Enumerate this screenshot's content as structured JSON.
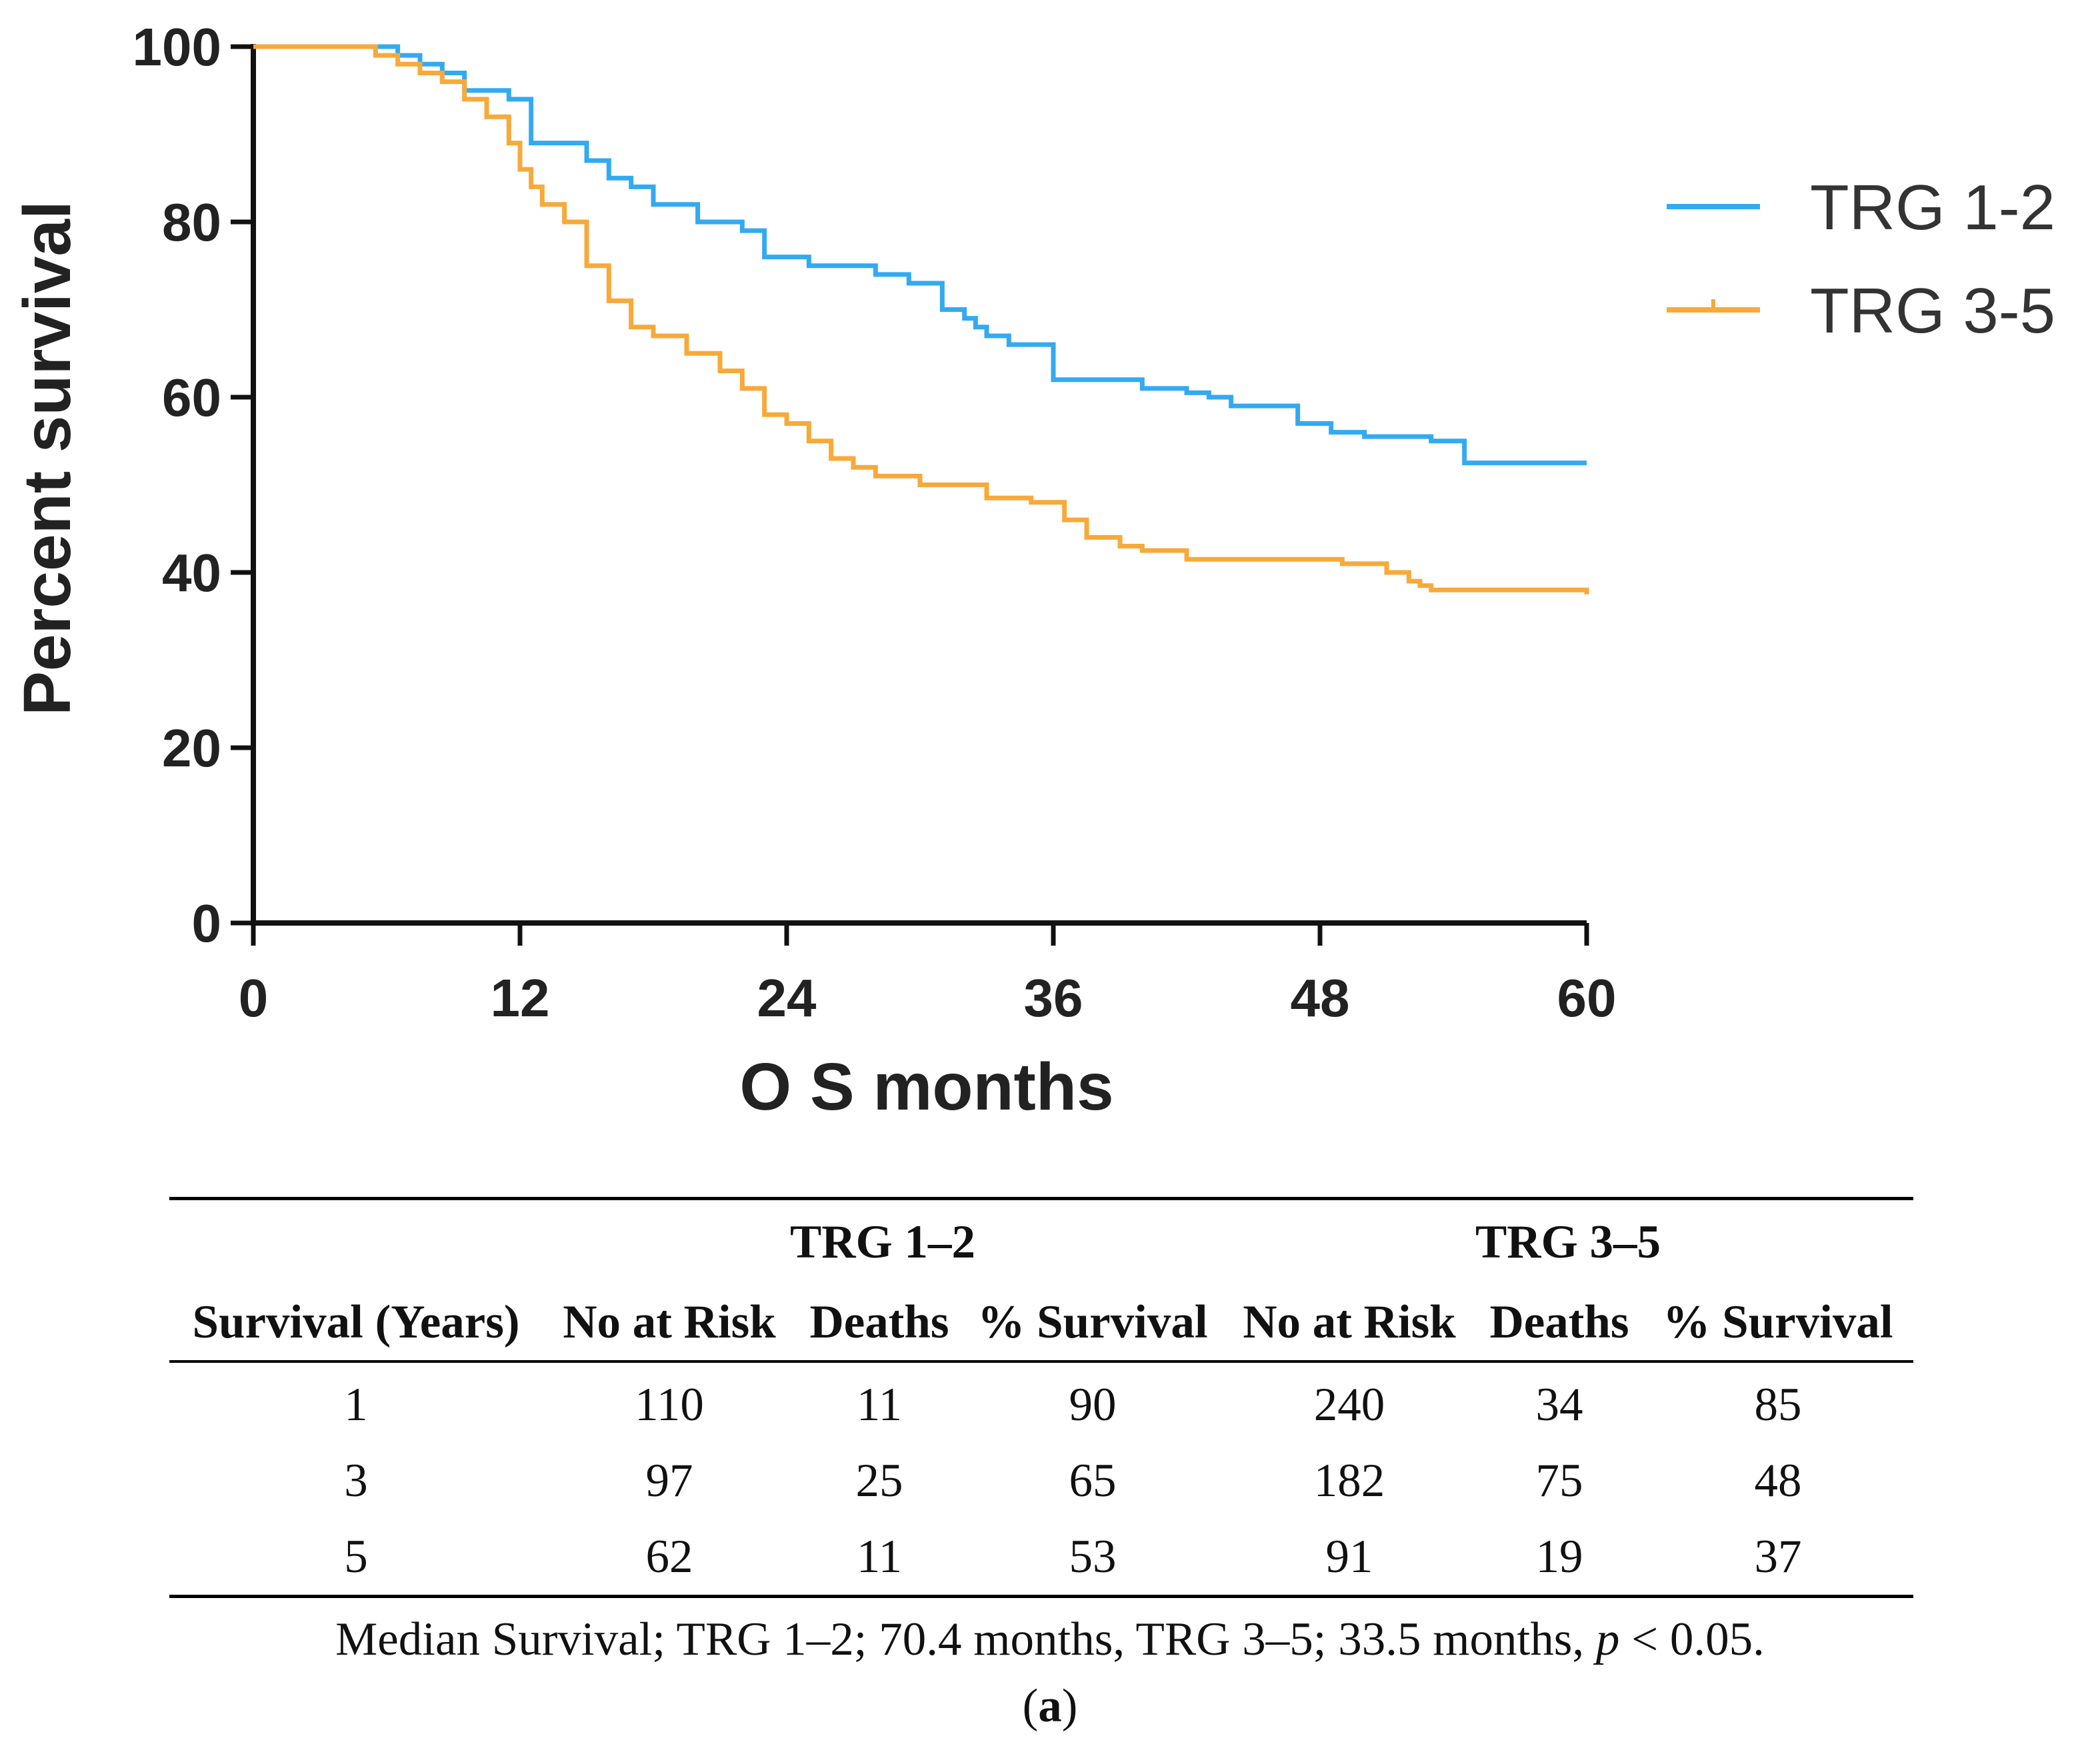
{
  "chart_data": {
    "type": "line",
    "subtype": "kaplan-meier",
    "xlabel": "O S months",
    "ylabel": "Percent survival",
    "xlim": [
      0,
      60
    ],
    "ylim": [
      0,
      100
    ],
    "xticks": [
      "0",
      "12",
      "24",
      "36",
      "48",
      "60"
    ],
    "yticks": [
      "0",
      "20",
      "40",
      "60",
      "80",
      "100"
    ],
    "legend_position": "right",
    "series": [
      {
        "name": "TRG 1-2",
        "color": "#33aaf0",
        "x": [
          0,
          5.5,
          6.5,
          7.5,
          8.5,
          9.5,
          11.5,
          12.5,
          15,
          16,
          17,
          18,
          20,
          22,
          23,
          25,
          28,
          29.5,
          31,
          32,
          32.5,
          33,
          34,
          36,
          40,
          42,
          43,
          44,
          45,
          47,
          48.5,
          50,
          53,
          54.5,
          60
        ],
        "y": [
          100,
          100,
          99,
          98,
          97,
          95,
          94,
          89,
          87,
          85,
          84,
          82,
          80,
          79,
          76,
          75,
          74,
          73,
          70,
          69,
          68,
          67,
          66,
          62,
          61,
          60.5,
          60,
          59,
          59,
          57,
          56,
          55.5,
          55,
          52.5,
          52.5
        ]
      },
      {
        "name": "TRG 3-5",
        "color": "#f7a93a",
        "x": [
          0,
          5.5,
          6.5,
          7.5,
          8.5,
          9.5,
          10.5,
          11.5,
          12,
          12.5,
          13,
          14,
          15,
          16,
          17,
          18,
          19.5,
          21,
          22,
          23,
          24,
          25,
          26,
          27,
          28,
          30,
          32,
          33,
          35,
          36.5,
          37.5,
          39,
          40,
          42,
          47,
          49,
          51,
          52,
          52.5,
          53,
          60
        ],
        "y": [
          100,
          99,
          98,
          97,
          96,
          94,
          92,
          89,
          86,
          84,
          82,
          80,
          75,
          71,
          68,
          67,
          65,
          63,
          61,
          58,
          57,
          55,
          53,
          52,
          51,
          50,
          50,
          48.5,
          48,
          46,
          44,
          43,
          42.5,
          41.5,
          41.5,
          41,
          40,
          39,
          38.5,
          38,
          37.5
        ]
      }
    ]
  },
  "table": {
    "group_headers": [
      "TRG 1–2",
      "TRG 3–5"
    ],
    "columns": [
      "Survival (Years)",
      "No at Risk",
      "Deaths",
      "% Survival",
      "No at Risk",
      "Deaths",
      "% Survival"
    ],
    "rows": [
      [
        "1",
        "110",
        "11",
        "90",
        "240",
        "34",
        "85"
      ],
      [
        "3",
        "97",
        "25",
        "65",
        "182",
        "75",
        "48"
      ],
      [
        "5",
        "62",
        "11",
        "53",
        "91",
        "19",
        "37"
      ]
    ]
  },
  "footnote": {
    "prefix": "Median Survival; TRG 1–2; 70.4 months, TRG 3–5; 33.5 months, ",
    "p_symbol": "p",
    "suffix": " < 0.05."
  },
  "panel_label": "a"
}
